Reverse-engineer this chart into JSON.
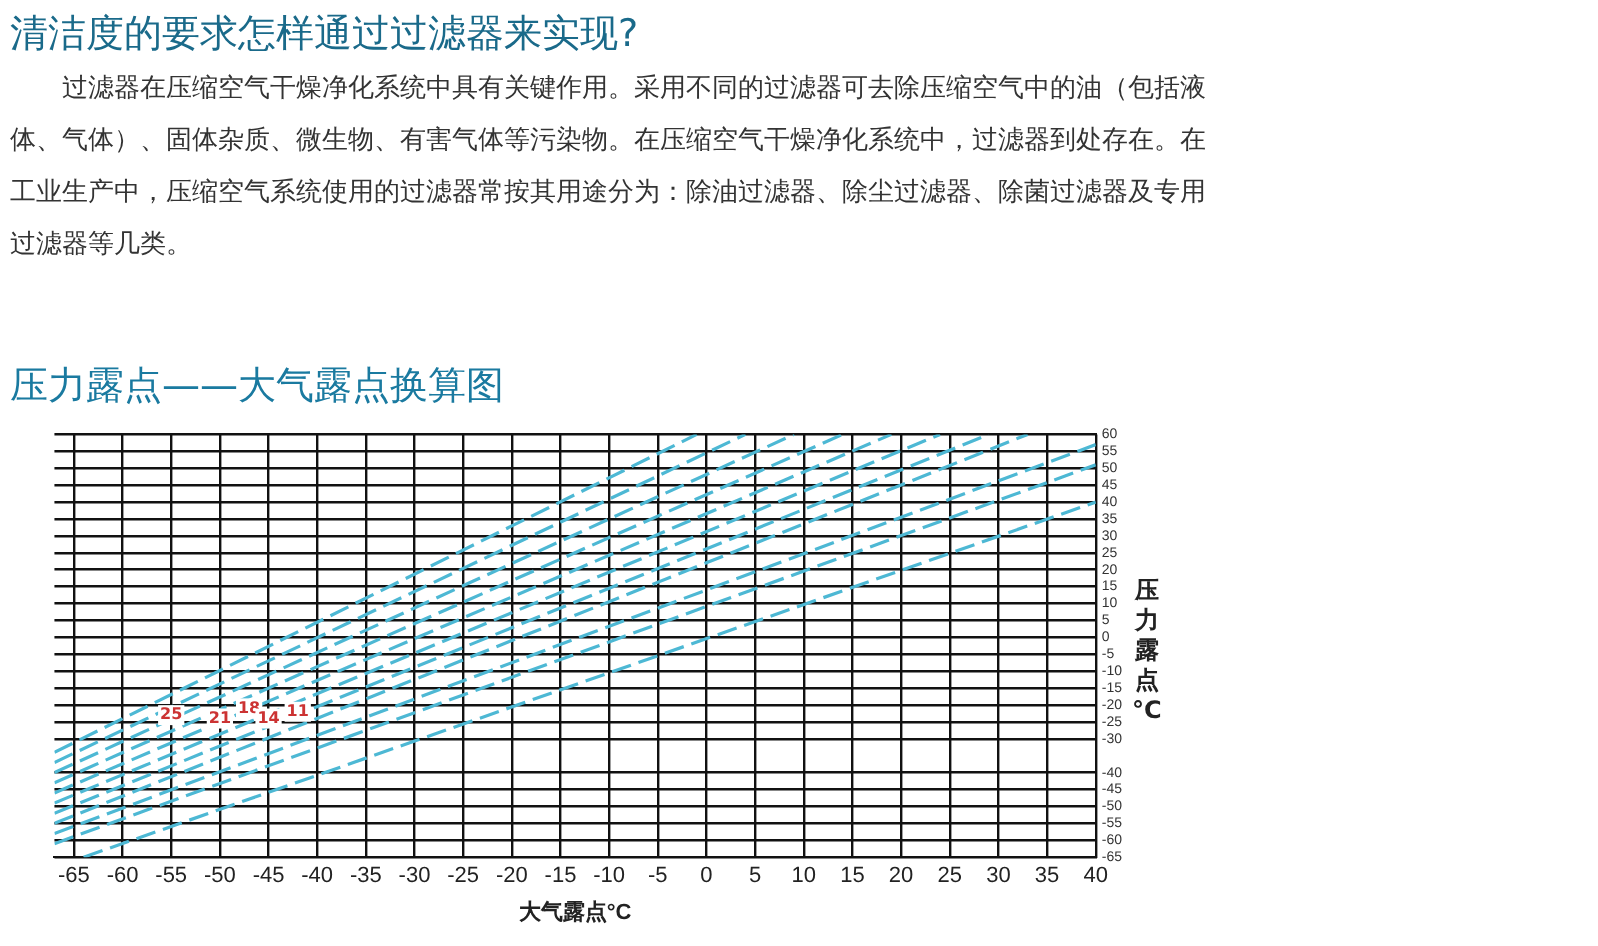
{
  "chart_data": {
    "type": "line",
    "title": "压力露点——大气露点换算图",
    "xlabel": "大气露点°C",
    "ylabel": "压力露点°C",
    "annotations": [
      "清洁度的要求怎样通过过滤器来实现?",
      "过滤器在压缩空气干燥净化系统中具有关键作用。采用不同的过滤器可去除压缩空气中的油（包括液体、气体）、固体杂质、微生物、有害气体等污染物。在压缩空气干燥净化系统中，过滤器到处存在。在工业生产中，压缩空气系统使用的过滤器常按其用途分为：除油过滤器、除尘过滤器、除菌过滤器及专用过滤器等几类。",
      {
        "text": "25",
        "x": -55,
        "y": -23
      },
      {
        "text": "21",
        "x": -50,
        "y": -24
      },
      {
        "text": "18",
        "x": -47,
        "y": -21
      },
      {
        "text": "14",
        "x": -45,
        "y": -24
      },
      {
        "text": "11",
        "x": -42,
        "y": -22
      }
    ],
    "series": [
      {
        "color": "#4db8d4",
        "x": [
          -67,
          -1
        ],
        "values": [
          -34,
          60
        ]
      },
      {
        "color": "#4db8d4",
        "x": [
          -67,
          4
        ],
        "values": [
          -37,
          60
        ]
      },
      {
        "color": "#4db8d4",
        "x": [
          -67,
          9
        ],
        "values": [
          -40,
          60
        ]
      },
      {
        "color": "#4db8d4",
        "x": [
          -67,
          14
        ],
        "values": [
          -43,
          60
        ]
      },
      {
        "color": "#4db8d4",
        "x": [
          -67,
          19
        ],
        "values": [
          -46,
          60
        ]
      },
      {
        "color": "#4db8d4",
        "x": [
          -67,
          24
        ],
        "values": [
          -49,
          60
        ]
      },
      {
        "color": "#4db8d4",
        "x": [
          -67,
          29
        ],
        "values": [
          -52,
          60
        ]
      },
      {
        "color": "#4db8d4",
        "x": [
          -67,
          33
        ],
        "values": [
          -55,
          60
        ]
      },
      {
        "color": "#4db8d4",
        "x": [
          -67,
          40
        ],
        "values": [
          -58,
          57
        ]
      },
      {
        "color": "#4db8d4",
        "x": [
          -67,
          40
        ],
        "values": [
          -61,
          51
        ]
      },
      {
        "color": "#4db8d4",
        "x": [
          -64,
          40
        ],
        "values": [
          -65,
          40
        ]
      }
    ],
    "xlim": [
      -67,
      40
    ],
    "xticks": [
      -65,
      -60,
      -55,
      -50,
      -45,
      -40,
      -35,
      -30,
      -25,
      -20,
      -15,
      -10,
      -5,
      0,
      5,
      10,
      15,
      20,
      25,
      30,
      35,
      40
    ],
    "ylim": [
      -65,
      60
    ],
    "yticks": [
      60,
      55,
      50,
      45,
      40,
      35,
      30,
      25,
      20,
      15,
      10,
      5,
      0,
      -5,
      -10,
      -15,
      -20,
      -25,
      -30,
      -40,
      -45,
      -50,
      -55,
      -60,
      -65
    ],
    "grid": true,
    "legend": false,
    "marker": "none",
    "line_style": "dashed"
  }
}
